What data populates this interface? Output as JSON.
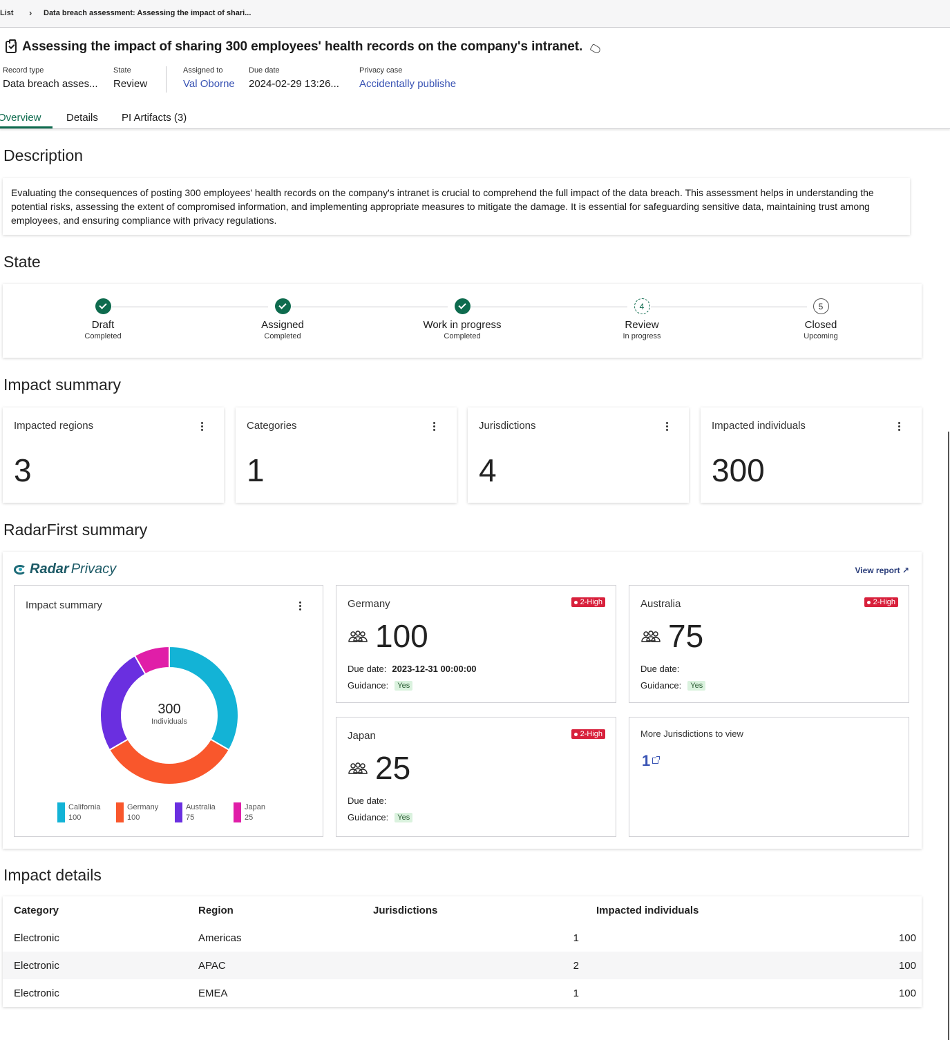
{
  "breadcrumb": {
    "list": "List",
    "separator": "›",
    "current": "Data breach assessment: Assessing the impact of shari..."
  },
  "title": "Assessing the impact of sharing 300 employees' health records on the company's intranet.",
  "meta": {
    "record_type_label": "Record type",
    "record_type": "Data breach asses...",
    "state_label": "State",
    "state": "Review",
    "assigned_label": "Assigned to",
    "assigned": "Val Oborne",
    "due_label": "Due date",
    "due": "2024-02-29 13:26...",
    "privacy_label": "Privacy case",
    "privacy": "Accidentally publishe"
  },
  "tabs": [
    {
      "label": "Overview"
    },
    {
      "label": "Details"
    },
    {
      "label": "PI Artifacts (3)"
    }
  ],
  "sections": {
    "description": "Description",
    "state": "State",
    "impact_summary": "Impact summary",
    "radarfirst": "RadarFirst summary",
    "impact_details": "Impact details"
  },
  "description": "Evaluating the consequences of posting 300 employees' health records on the company's intranet is crucial to comprehend the full impact of the data breach. This assessment helps in understanding the potential risks, assessing the extent of compromised information, and implementing appropriate measures to mitigate the damage. It is essential for safeguarding sensitive data, maintaining trust among employees, and ensuring compliance with privacy regulations.",
  "steps": [
    {
      "number": "1",
      "name": "Draft",
      "status": "Completed",
      "state": "done"
    },
    {
      "number": "2",
      "name": "Assigned",
      "status": "Completed",
      "state": "done"
    },
    {
      "number": "3",
      "name": "Work in progress",
      "status": "Completed",
      "state": "done"
    },
    {
      "number": "4",
      "name": "Review",
      "status": "In progress",
      "state": "current"
    },
    {
      "number": "5",
      "name": "Closed",
      "status": "Upcoming",
      "state": "upcoming"
    }
  ],
  "metrics": [
    {
      "label": "Impacted regions",
      "value": "3"
    },
    {
      "label": "Categories",
      "value": "1"
    },
    {
      "label": "Jurisdictions",
      "value": "4"
    },
    {
      "label": "Impacted individuals",
      "value": "300"
    }
  ],
  "radar": {
    "brand_bold": "Radar",
    "brand_light": "Privacy",
    "view_report": "View report ↗",
    "chart_title": "Impact summary",
    "center_value": "300",
    "center_label": "Individuals",
    "jurisdictions": [
      {
        "name": "Germany",
        "badge": "2-High",
        "count": "100",
        "due_label": "Due date:",
        "due": "2023-12-31 00:00:00",
        "guidance_label": "Guidance:",
        "guidance": "Yes"
      },
      {
        "name": "Australia",
        "badge": "2-High",
        "count": "75",
        "due_label": "Due date:",
        "due": "",
        "guidance_label": "Guidance:",
        "guidance": "Yes"
      },
      {
        "name": "Japan",
        "badge": "2-High",
        "count": "25",
        "due_label": "Due date:",
        "due": "",
        "guidance_label": "Guidance:",
        "guidance": "Yes"
      }
    ],
    "more_label": "More Jurisdictions to view",
    "more_count": "1"
  },
  "chart_data": {
    "type": "pie",
    "categories": [
      "California",
      "Germany",
      "Australia",
      "Japan"
    ],
    "values": [
      100,
      100,
      75,
      25
    ],
    "colors": [
      "#13b3d6",
      "#f9572c",
      "#6a2fe0",
      "#e01ea8"
    ],
    "title": "Impact summary",
    "legend": "bottom"
  },
  "table": {
    "headers": [
      "Category",
      "Region",
      "Jurisdictions",
      "Impacted individuals"
    ],
    "rows": [
      [
        "Electronic",
        "Americas",
        "1",
        "100"
      ],
      [
        "Electronic",
        "APAC",
        "2",
        "100"
      ],
      [
        "Electronic",
        "EMEA",
        "1",
        "100"
      ]
    ]
  },
  "colors": {
    "accent": "#0e6b4e",
    "link": "#3a54b4",
    "badge": "#d8213c"
  }
}
